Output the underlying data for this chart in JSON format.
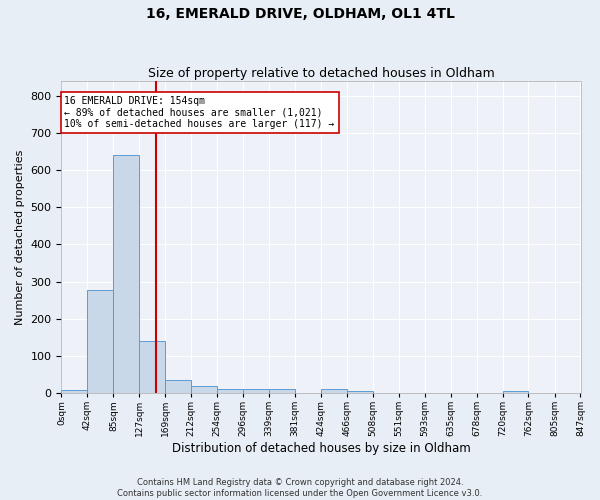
{
  "title": "16, EMERALD DRIVE, OLDHAM, OL1 4TL",
  "subtitle": "Size of property relative to detached houses in Oldham",
  "xlabel": "Distribution of detached houses by size in Oldham",
  "ylabel": "Number of detached properties",
  "bar_edges": [
    0,
    42,
    85,
    127,
    169,
    212,
    254,
    296,
    339,
    381,
    424,
    466,
    508,
    551,
    593,
    635,
    678,
    720,
    762,
    805,
    847
  ],
  "bar_heights": [
    8,
    276,
    641,
    139,
    35,
    19,
    12,
    10,
    10,
    0,
    10,
    5,
    0,
    0,
    0,
    0,
    0,
    7,
    0,
    0
  ],
  "bar_color": "#c8d8e8",
  "bar_edge_color": "#5b9bd5",
  "vline_x": 154,
  "vline_color": "#cc0000",
  "ylim": [
    0,
    840
  ],
  "yticks": [
    0,
    100,
    200,
    300,
    400,
    500,
    600,
    700,
    800
  ],
  "annotation_text": "16 EMERALD DRIVE: 154sqm\n← 89% of detached houses are smaller (1,021)\n10% of semi-detached houses are larger (117) →",
  "annotation_box_color": "#ffffff",
  "annotation_box_edge_color": "#cc0000",
  "footer_line1": "Contains HM Land Registry data © Crown copyright and database right 2024.",
  "footer_line2": "Contains public sector information licensed under the Open Government Licence v3.0.",
  "background_color": "#e8eef5",
  "plot_background_color": "#eef2f8",
  "grid_color": "#ffffff",
  "title_fontsize": 10,
  "subtitle_fontsize": 9,
  "tick_label_fontsize": 6.5,
  "ylabel_fontsize": 8,
  "xlabel_fontsize": 8.5,
  "annotation_fontsize": 7,
  "footer_fontsize": 6
}
